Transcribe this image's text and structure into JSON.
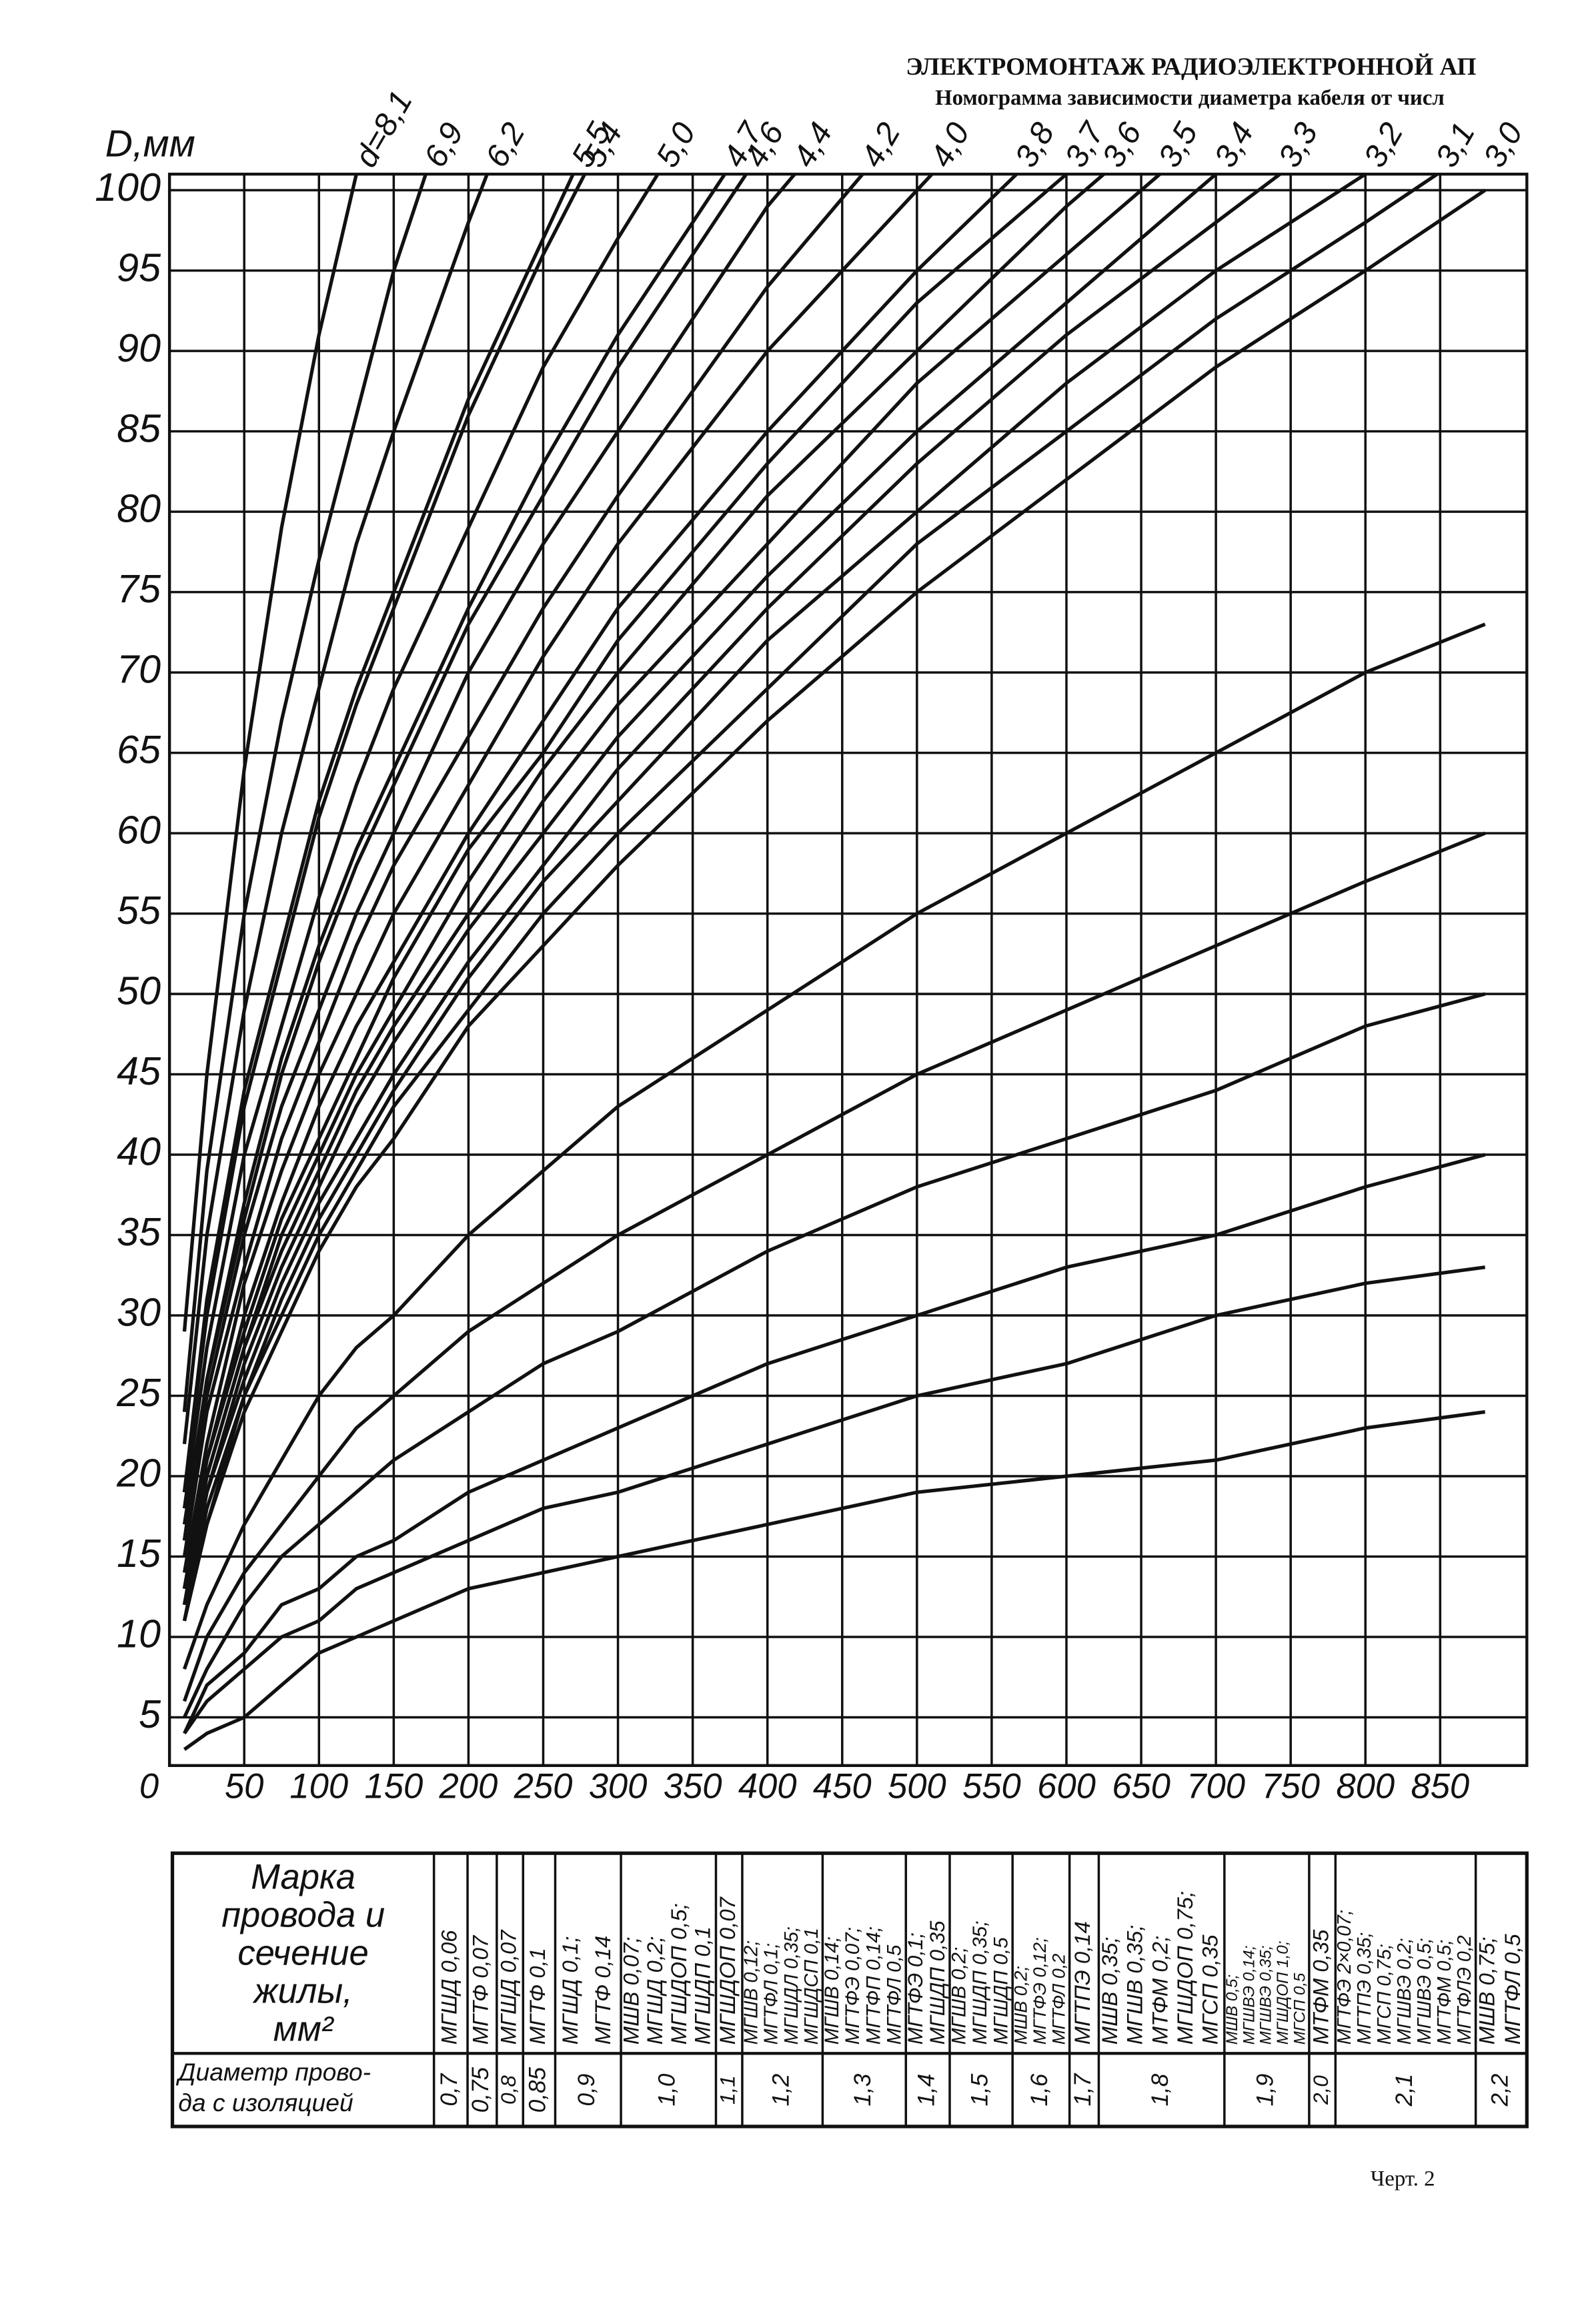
{
  "header": {
    "line1": "ЭЛЕКТРОМОНТАЖ РАДИОЭЛЕКТРОННОЙ АП",
    "line2": "Номограмма зависимости диаметра кабеля от числ"
  },
  "chart_data": {
    "type": "line",
    "y_label": "D,мм",
    "color": "#111",
    "grid": true,
    "x": [
      10,
      25,
      50,
      75,
      100,
      125,
      150,
      200,
      250,
      300,
      400,
      500,
      600,
      700,
      800,
      880
    ],
    "xlim": [
      0,
      908
    ],
    "xticks": [
      0,
      50,
      100,
      150,
      200,
      250,
      300,
      350,
      400,
      450,
      500,
      550,
      600,
      650,
      700,
      750,
      800,
      850
    ],
    "ylim": [
      2,
      101
    ],
    "yticks": [
      5,
      10,
      15,
      20,
      25,
      30,
      35,
      40,
      45,
      50,
      55,
      60,
      65,
      70,
      75,
      80,
      85,
      90,
      95,
      100
    ],
    "series": [
      {
        "name": "d=8,1",
        "values": [
          29,
          45,
          64,
          79,
          91,
          101,
          null,
          null,
          null,
          null,
          null,
          null,
          null,
          null,
          null,
          null
        ]
      },
      {
        "name": "6,9",
        "values": [
          24,
          39,
          55,
          67,
          77,
          86,
          95,
          109,
          null,
          null,
          null,
          null,
          null,
          null,
          null,
          null
        ]
      },
      {
        "name": "6,2",
        "values": [
          22,
          35,
          49,
          60,
          69,
          78,
          85,
          98,
          110,
          null,
          null,
          null,
          null,
          null,
          null,
          null
        ]
      },
      {
        "name": "5,5",
        "values": [
          19,
          31,
          44,
          53,
          62,
          69,
          75,
          87,
          97,
          107,
          null,
          null,
          null,
          null,
          null,
          null
        ]
      },
      {
        "name": "5,4",
        "values": [
          19,
          30,
          43,
          52,
          61,
          68,
          74,
          86,
          96,
          105,
          null,
          null,
          null,
          null,
          null,
          null
        ]
      },
      {
        "name": "5,0",
        "values": [
          18,
          28,
          40,
          48,
          56,
          63,
          69,
          79,
          89,
          97,
          112,
          null,
          null,
          null,
          null,
          null
        ]
      },
      {
        "name": "4,7",
        "values": [
          17,
          26,
          37,
          46,
          53,
          59,
          64,
          74,
          83,
          91,
          105,
          null,
          null,
          null,
          null,
          null
        ]
      },
      {
        "name": "4,6",
        "values": [
          16,
          26,
          36,
          45,
          52,
          58,
          63,
          73,
          81,
          89,
          103,
          null,
          null,
          null,
          null,
          null
        ]
      },
      {
        "name": "4,4",
        "values": [
          16,
          25,
          35,
          43,
          49,
          55,
          60,
          70,
          78,
          85,
          99,
          110,
          null,
          null,
          null,
          null
        ]
      },
      {
        "name": "4,2",
        "values": [
          15,
          24,
          33,
          41,
          47,
          53,
          58,
          66,
          74,
          81,
          94,
          105,
          null,
          null,
          null,
          null
        ]
      },
      {
        "name": "4,0",
        "values": [
          14,
          22,
          32,
          39,
          45,
          50,
          55,
          63,
          71,
          78,
          90,
          100,
          110,
          null,
          null,
          null
        ]
      },
      {
        "name": "3,8",
        "values": [
          13,
          21,
          30,
          37,
          43,
          48,
          52,
          60,
          67,
          74,
          85,
          95,
          104,
          null,
          null,
          null
        ]
      },
      {
        "name": "3,7",
        "values": [
          13,
          21,
          29,
          36,
          41,
          46,
          51,
          59,
          65,
          72,
          83,
          93,
          101,
          null,
          null,
          null
        ]
      },
      {
        "name": "3,6",
        "values": [
          13,
          20,
          28,
          35,
          40,
          45,
          49,
          57,
          64,
          70,
          81,
          90,
          99,
          107,
          null,
          null
        ]
      },
      {
        "name": "3,5",
        "values": [
          12,
          20,
          28,
          34,
          39,
          44,
          48,
          55,
          62,
          68,
          78,
          88,
          96,
          104,
          null,
          null
        ]
      },
      {
        "name": "3,4",
        "values": [
          12,
          19,
          27,
          33,
          38,
          43,
          47,
          54,
          60,
          66,
          76,
          85,
          93,
          101,
          null,
          null
        ]
      },
      {
        "name": "3,3",
        "values": [
          12,
          19,
          26,
          32,
          37,
          41,
          45,
          52,
          58,
          64,
          74,
          83,
          91,
          98,
          105,
          null
        ]
      },
      {
        "name": "3,2",
        "values": [
          11,
          18,
          25,
          31,
          36,
          40,
          44,
          51,
          57,
          62,
          72,
          80,
          88,
          95,
          101,
          null
        ]
      },
      {
        "name": "3,1",
        "values": [
          11,
          17,
          25,
          30,
          35,
          39,
          43,
          49,
          55,
          60,
          69,
          78,
          85,
          92,
          98,
          103
        ]
      },
      {
        "name": "3,0",
        "values": [
          11,
          17,
          24,
          29,
          34,
          38,
          41,
          48,
          53,
          58,
          67,
          75,
          82,
          89,
          95,
          100
        ]
      },
      {
        "values": [
          8,
          12,
          17,
          21,
          25,
          28,
          30,
          35,
          39,
          43,
          49,
          55,
          60,
          65,
          70,
          73
        ]
      },
      {
        "values": [
          6,
          10,
          14,
          17,
          20,
          23,
          25,
          29,
          32,
          35,
          40,
          45,
          49,
          53,
          57,
          60
        ]
      },
      {
        "values": [
          5,
          8,
          12,
          15,
          17,
          19,
          21,
          24,
          27,
          29,
          34,
          38,
          41,
          44,
          48,
          50
        ]
      },
      {
        "values": [
          4,
          7,
          9,
          12,
          13,
          15,
          16,
          19,
          21,
          23,
          27,
          30,
          33,
          35,
          38,
          40
        ]
      },
      {
        "values": [
          4,
          6,
          8,
          10,
          11,
          13,
          14,
          16,
          18,
          19,
          22,
          25,
          27,
          30,
          32,
          33
        ]
      },
      {
        "values": [
          3,
          4,
          5,
          7,
          9,
          10,
          11,
          13,
          14,
          15,
          17,
          19,
          20,
          21,
          23,
          24
        ]
      }
    ]
  },
  "table": {
    "header_label": [
      "Марка",
      "провода и",
      "сечение",
      "жилы,",
      "мм²"
    ],
    "diameter_label": [
      "Диаметр прово-",
      "да с изоляцией"
    ],
    "columns": [
      {
        "wires": [
          "МГШД 0,06"
        ],
        "diameter": "0,7"
      },
      {
        "wires": [
          "МГТФ 0,07"
        ],
        "diameter": "0,75"
      },
      {
        "wires": [
          "МГШД 0,07"
        ],
        "diameter": "0,8"
      },
      {
        "wires": [
          "МГТФ 0,1"
        ],
        "diameter": "0,85"
      },
      {
        "wires": [
          "МГШД 0,1;",
          "МГТФ 0,14"
        ],
        "diameter": "0,9"
      },
      {
        "wires": [
          "МШВ 0,07;",
          "МГШД 0,2;",
          "МГШДОП 0,5;",
          "МГШДП 0,1"
        ],
        "diameter": "1,0"
      },
      {
        "wires": [
          "МГШДОП 0,07"
        ],
        "diameter": "1,1"
      },
      {
        "wires": [
          "МГШВ 0,12;",
          "МГТФЛ 0,1;",
          "МГШДЛ 0,35;",
          "МГШДСП 0,1"
        ],
        "diameter": "1,2"
      },
      {
        "wires": [
          "МГШВ 0,14;",
          "МГТФЭ 0,07;",
          "МГТФП 0,14;",
          "МГТФЛ 0,5"
        ],
        "diameter": "1,3"
      },
      {
        "wires": [
          "МГТФЭ 0,1;",
          "МГШДП 0,35"
        ],
        "diameter": "1,4"
      },
      {
        "wires": [
          "МГШВ 0,2;",
          "МГШДП 0,35;",
          "МГШДП 0,5"
        ],
        "diameter": "1,5"
      },
      {
        "wires": [
          "МШВ 0,2;",
          "МГТФЭ 0,12;",
          "МГТФЛ 0,2"
        ],
        "diameter": "1,6"
      },
      {
        "wires": [
          "МГТПЭ 0,14"
        ],
        "diameter": "1,7"
      },
      {
        "wires": [
          "МШВ 0,35;",
          "МГШВ 0,35;",
          "МТФМ 0,2;",
          "МГШДОП 0,75;",
          "МГСП 0,35"
        ],
        "diameter": "1,8"
      },
      {
        "wires": [
          "МШВ 0,5;",
          "МГШВЭ 0,14;",
          "МГШВЭ 0,35;",
          "МГШДОП 1,0;",
          "МГСП 0,5"
        ],
        "diameter": "1,9"
      },
      {
        "wires": [
          "МТФМ 0,35"
        ],
        "diameter": "2,0"
      },
      {
        "wires": [
          "МГТФЭ 2×0,07;",
          "МГТПЭ 0,35;",
          "МГСП 0,75;",
          "МГШВЭ 0,2;",
          "МГШВЭ 0,5;",
          "МГТФМ 0,5;",
          "МГТФЛЭ 0,2"
        ],
        "diameter": "2,1"
      },
      {
        "wires": [
          "МШВ 0,75;",
          "МГТФЛ 0,5"
        ],
        "diameter": "2,2"
      }
    ]
  },
  "footer": "Черт. 2"
}
